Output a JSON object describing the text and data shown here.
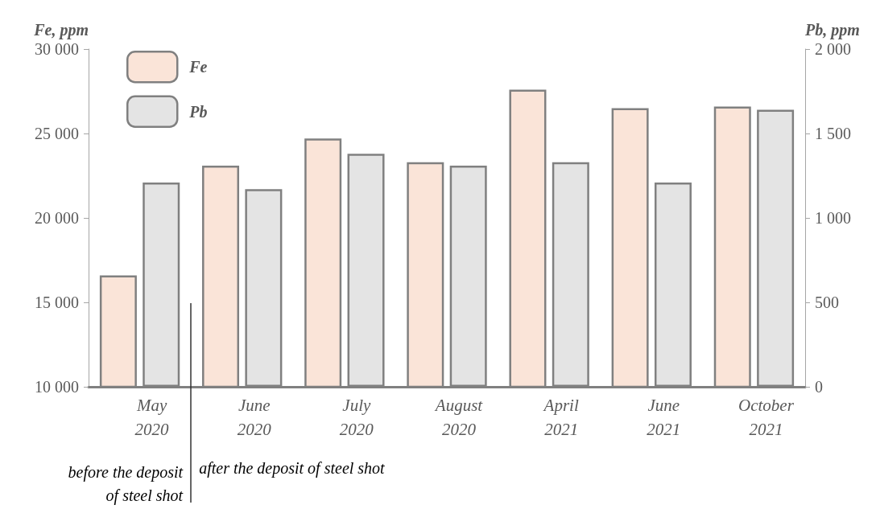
{
  "chart_data": {
    "type": "bar",
    "ylabel": "Fe, ppm",
    "y2label": "Pb, ppm",
    "categories": [
      "May\n2020",
      "June\n2020",
      "July\n2020",
      "August\n2020",
      "April\n2021",
      "June\n2021",
      "October\n2021"
    ],
    "series": [
      {
        "name": "Fe",
        "color": "#fae4d8",
        "values": [
          16600,
          23100,
          24700,
          23300,
          27600,
          26500,
          26600
        ]
      },
      {
        "name": "Pb",
        "color": "#e4e4e4",
        "axis": "y2",
        "values": [
          1210,
          1170,
          1380,
          1310,
          1330,
          1210,
          1640
        ]
      }
    ],
    "ylim": [
      10000,
      30000
    ],
    "yticks": [
      {
        "value": 10000,
        "label": "10 000"
      },
      {
        "value": 15000,
        "label": "15 000"
      },
      {
        "value": 20000,
        "label": "20 000"
      },
      {
        "value": 25000,
        "label": "25 000"
      },
      {
        "value": 30000,
        "label": "30 000"
      }
    ],
    "y2lim": [
      0,
      2000
    ],
    "y2ticks": [
      0,
      500,
      {
        "value": 1000,
        "label": "1 000"
      },
      {
        "value": 1500,
        "label": "1 500"
      },
      {
        "value": 2000,
        "label": "2 000"
      }
    ],
    "annotations": [
      "before the deposit\nof steel shot",
      "after the deposit of steel shot"
    ],
    "grid": false,
    "legend": "top left"
  }
}
